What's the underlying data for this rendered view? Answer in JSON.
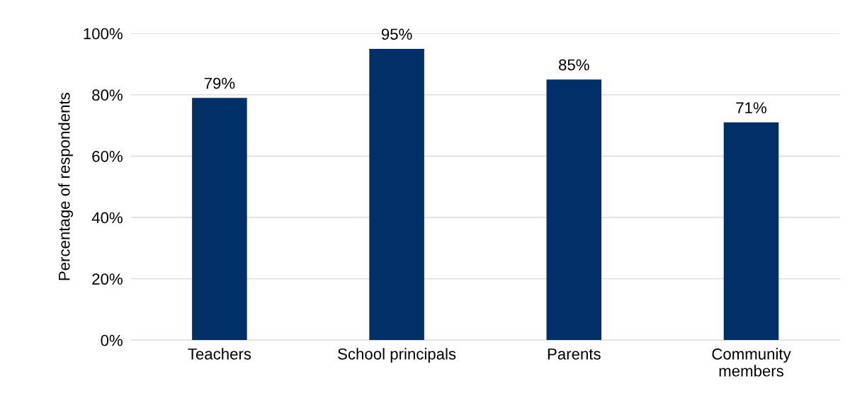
{
  "chart_data": {
    "type": "bar",
    "ylabel": "Percentage of respondents",
    "categories": [
      "Teachers",
      "School principals",
      "Parents",
      "Community\nmembers"
    ],
    "values": [
      79,
      95,
      85,
      71
    ],
    "color": "#003067",
    "value_labels": [
      "79%",
      "95%",
      "85%",
      "71%"
    ],
    "ylim": [
      0,
      100
    ],
    "yticks": [
      {
        "value": 0,
        "label": "0%"
      },
      {
        "value": 20,
        "label": "20%"
      },
      {
        "value": 40,
        "label": "40%"
      },
      {
        "value": 60,
        "label": "60%"
      },
      {
        "value": 80,
        "label": "80%"
      },
      {
        "value": 100,
        "label": "100%"
      }
    ],
    "grid": "y"
  }
}
